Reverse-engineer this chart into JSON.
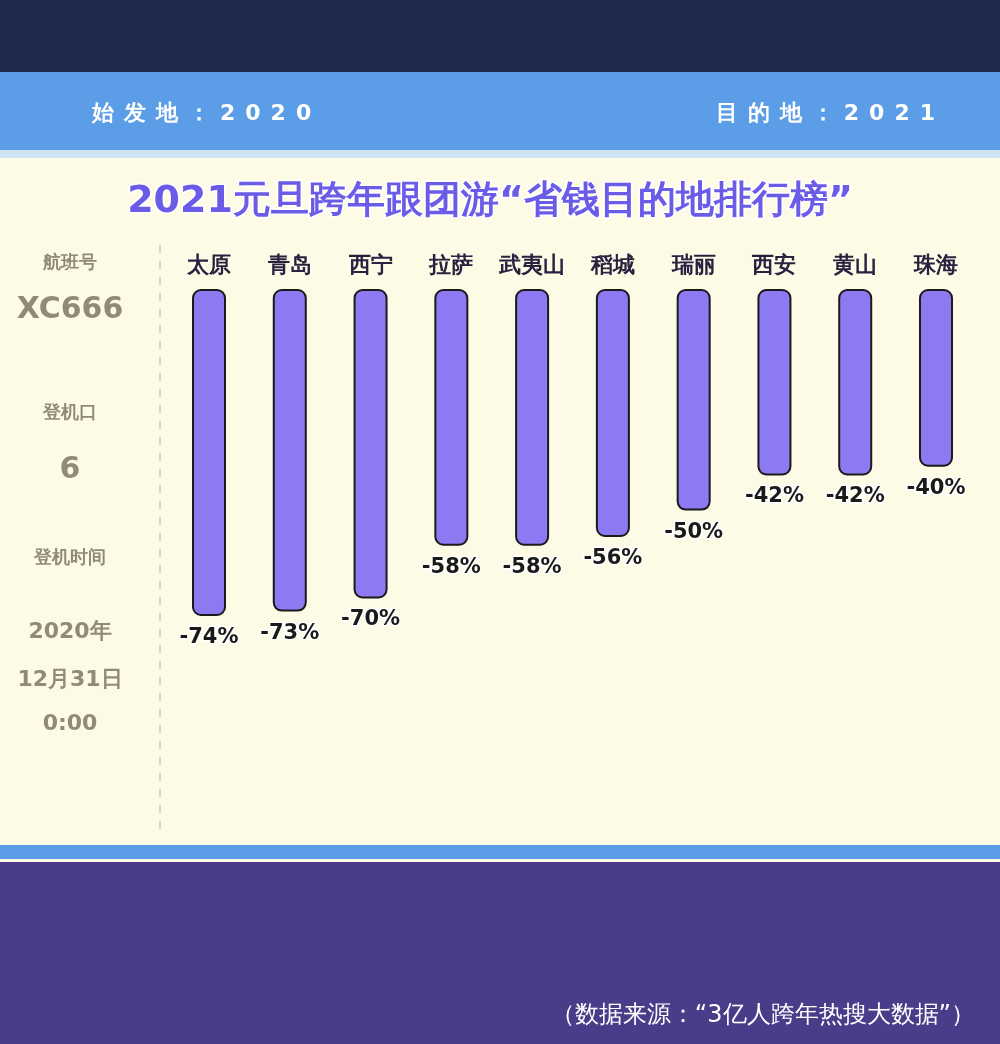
{
  "chart_data": {
    "type": "bar",
    "title": "2021元旦跨年跟团游“省钱目的地排行榜”",
    "categories": [
      "太原",
      "青岛",
      "西宁",
      "拉萨",
      "武夷山",
      "稻城",
      "瑞丽",
      "西安",
      "黄山",
      "珠海"
    ],
    "values": [
      -74,
      -73,
      -70,
      -58,
      -58,
      -56,
      -50,
      -42,
      -42,
      -40
    ],
    "color": "#8d7af2",
    "value_labels": [
      "-74%",
      "-73%",
      "-70%",
      "-58%",
      "-58%",
      "-56%",
      "-50%",
      "-42%",
      "-42%",
      "-40%"
    ],
    "annotations": [
      "始发地：2020",
      "目的地：2021",
      "航班号",
      "XC666",
      "登机口",
      "6",
      "登机时间",
      "2020年",
      "12月31日",
      "0:00",
      "（数据来源：“3亿人跨年热搜大数据”）"
    ]
  }
}
